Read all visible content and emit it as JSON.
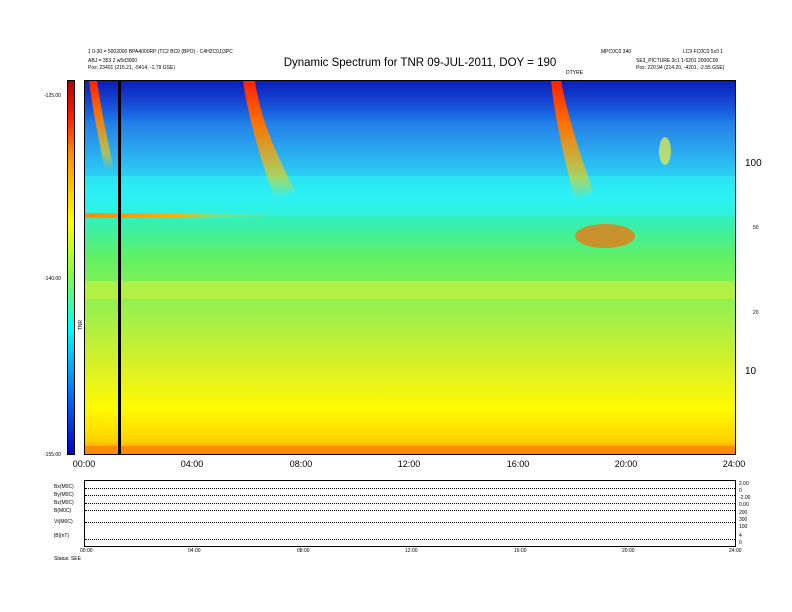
{
  "header": {
    "left_line1": "1 0-30 = 5002000 BPA4000RP (TC2 BC0 (BPO) - C4H2C0J)3PC",
    "left_line2": "ABJ = 353 2 w5d3000",
    "left_line3": "Pos:    23401 (215.21, -5414, -1.79 GSE)",
    "right_line1": "MPC0C0 340",
    "right_line2": "LC9 FC0C0 5c0 1",
    "right_line3": "SE3_PICTURE 3c1 1-5201 2000C00",
    "right_line4": "Pos:    220.94 (214.20, -4201, -2.55 GSE)",
    "above_plot_mark": "DTYRE"
  },
  "chart_data": {
    "type": "heatmap",
    "title": "Dynamic Spectrum for TNR 09-JUL-2011, DOY = 190",
    "xlabel": "",
    "ylabel": "",
    "x_range": [
      "00:00",
      "24:00"
    ],
    "x_ticks": [
      "00:00",
      "04:00",
      "08:00",
      "12:00",
      "16:00",
      "20:00",
      "24:00"
    ],
    "y_scale": "log",
    "y_ticks_right": [
      "100",
      "10"
    ],
    "y_ticks_minor_right": [
      "20",
      "50"
    ],
    "colorbar": {
      "label": "TNR",
      "ticks": [
        "-125.00",
        "-140.00",
        "-155.00"
      ],
      "range": [
        -155,
        -125
      ],
      "colors": [
        "#b30000",
        "#ff2000",
        "#ff9000",
        "#ffff00",
        "#80ff40",
        "#00ffff",
        "#0080ff",
        "#0000c0"
      ]
    },
    "marker_line_time_hours": 1.2,
    "bursts": [
      {
        "start_hours": 0.2,
        "label": ""
      },
      {
        "start_hours": 5.8,
        "label": ""
      },
      {
        "start_hours": 17.2,
        "label": ""
      }
    ]
  },
  "lower_panel": {
    "row_labels": [
      "Bx(M0C)",
      "By(M0C)",
      "Bz(M0C)",
      "B(M0C)",
      "Vt(M0C)",
      "|B|(nT)"
    ],
    "right_scale": [
      "2.00",
      "0",
      "-2.00",
      "0.00",
      "200",
      "300",
      "100",
      "4",
      "0"
    ],
    "x_ticks": [
      "00:00",
      "04:00",
      "08:00",
      "12:00",
      "16:00",
      "20:00",
      "24:00"
    ],
    "footer": "Status:   SEE"
  }
}
